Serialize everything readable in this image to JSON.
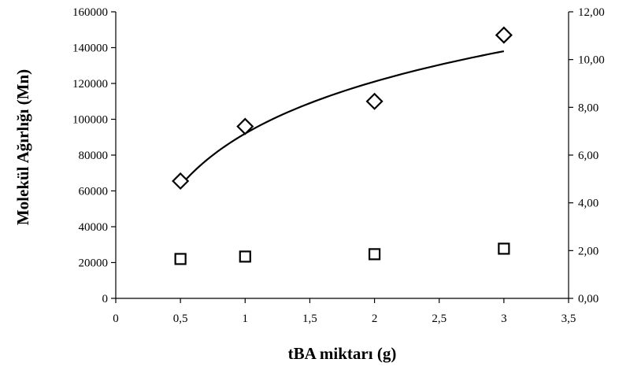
{
  "chart_data": {
    "type": "scatter",
    "xlabel": "tBA miktarı (g)",
    "ylabel": "Molekül Ağırlığı (Mn)",
    "xlim": [
      0,
      3.5
    ],
    "ylim": [
      0,
      160000
    ],
    "y2lim": [
      0,
      12
    ],
    "x_ticks": [
      "0",
      "0,5",
      "1",
      "1,5",
      "2",
      "2,5",
      "3",
      "3,5"
    ],
    "y_ticks": [
      "0",
      "20000",
      "40000",
      "60000",
      "80000",
      "100000",
      "120000",
      "140000",
      "160000"
    ],
    "y2_ticks": [
      "0,00",
      "2,00",
      "4,00",
      "6,00",
      "8,00",
      "10,00",
      "12,00"
    ],
    "grid": false,
    "legend": "none",
    "series": [
      {
        "marker": "diamond",
        "axis": "left",
        "x": [
          0.5,
          1,
          2,
          3
        ],
        "y": [
          65500,
          96000,
          110000,
          147000
        ]
      },
      {
        "marker": "square",
        "axis": "right",
        "x": [
          0.5,
          1,
          2,
          3
        ],
        "y": [
          1.65,
          1.75,
          1.85,
          2.08
        ]
      }
    ],
    "trendline": {
      "type": "logarithmic",
      "axis": "left",
      "x_range": [
        0.5,
        3
      ],
      "y_at_start": 63000,
      "y_at_end": 138000
    }
  }
}
